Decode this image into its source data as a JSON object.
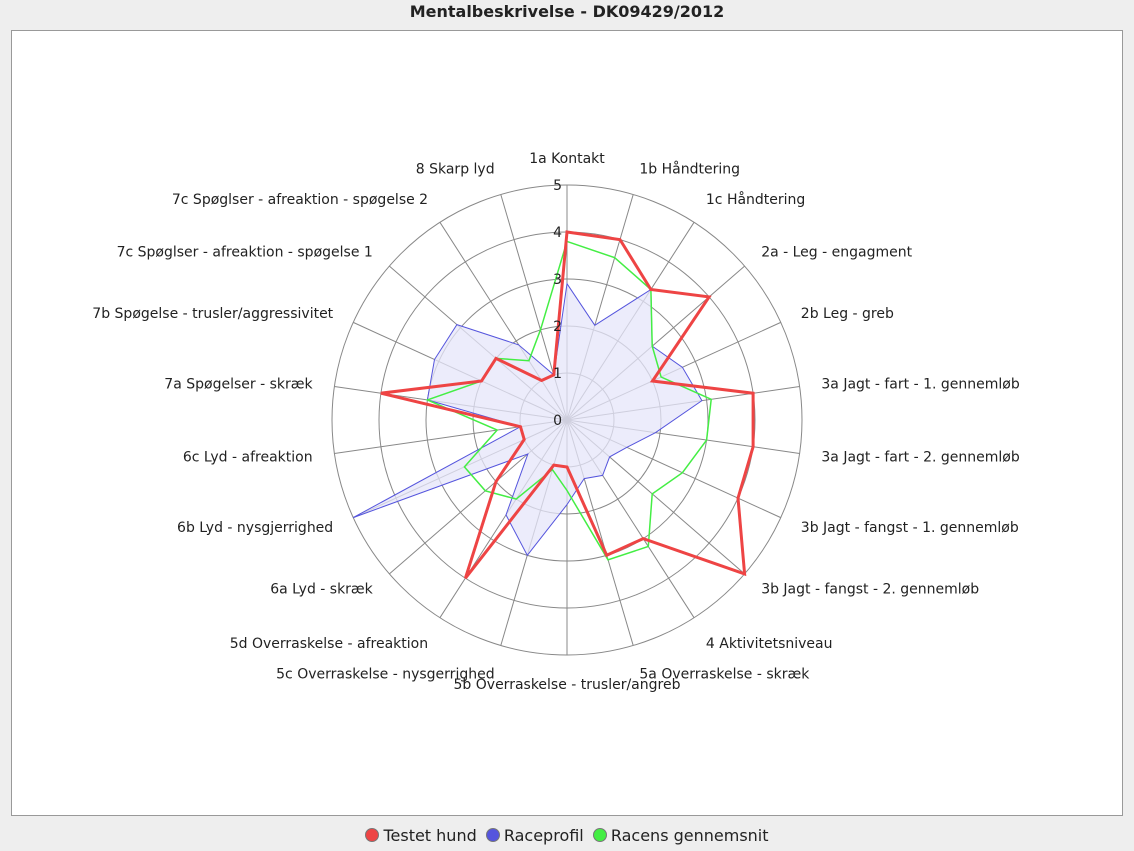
{
  "title": "Mentalbeskrivelse - DK09429/2012",
  "chart_data": {
    "type": "radar",
    "title": "Mentalbeskrivelse - DK09429/2012",
    "range": [
      0,
      5
    ],
    "ticks": [
      "0",
      "1",
      "2",
      "3",
      "4",
      "5"
    ],
    "categories": [
      "1a Kontakt",
      "1b Håndtering",
      "1c Håndtering",
      "2a - Leg - engagment",
      "2b Leg - greb",
      "3a Jagt - fart - 1. gennemløb",
      "3a Jagt - fart - 2. gennemløb",
      "3b Jagt - fangst - 1. gennemløb",
      "3b Jagt - fangst - 2. gennemløb",
      "4 Aktivitetsniveau",
      "5a Overraskelse - skræk",
      "5b Overraskelse - trusler/angreb",
      "5c Overraskelse - nysgerrighed",
      "5d Overraskelse - afreaktion",
      "6a Lyd - skræk",
      "6b Lyd - nysgjerrighed",
      "6c Lyd - afreaktion",
      "7a Spøgelser - skræk",
      "7b Spøgelse - trusler/aggressivitet",
      "7c Spøglser - afreaktion - spøgelse 1",
      "7c Spøglser - afreaktion - spøgelse 2",
      "8 Skarp lyd"
    ],
    "series": [
      {
        "name": "Testet hund",
        "color": "#ee4444",
        "values": [
          4.0,
          4.0,
          3.3,
          4.0,
          2.0,
          4.0,
          4.0,
          4.0,
          5.0,
          3.0,
          3.0,
          1.0,
          1.0,
          4.0,
          2.0,
          1.0,
          1.0,
          4.0,
          2.0,
          2.0,
          1.0,
          1.0
        ]
      },
      {
        "name": "Raceprofil",
        "color": "#5555dd",
        "fill": "#e6e6fa",
        "values": [
          2.9,
          2.1,
          3.3,
          2.4,
          2.7,
          2.9,
          1.9,
          1.4,
          1.2,
          1.4,
          1.3,
          1.8,
          3.0,
          2.4,
          1.1,
          5.0,
          1.0,
          3.0,
          3.1,
          3.1,
          1.9,
          1.0
        ]
      },
      {
        "name": "Racens gennemsnit",
        "color": "#44ee44",
        "values": [
          3.8,
          3.6,
          3.3,
          2.4,
          2.2,
          3.1,
          3.0,
          2.7,
          2.4,
          3.2,
          3.1,
          1.5,
          1.1,
          2.0,
          2.3,
          2.4,
          1.5,
          3.0,
          2.0,
          2.0,
          1.5,
          2.0
        ]
      }
    ]
  }
}
